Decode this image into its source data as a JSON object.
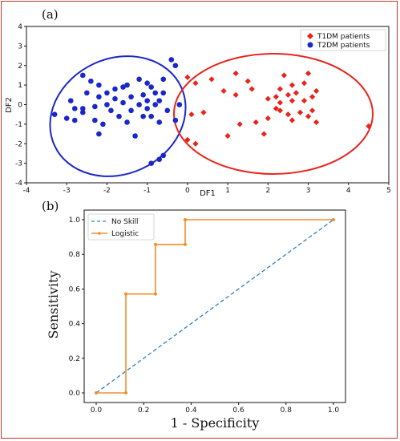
{
  "chart_data": [
    {
      "panel": "(a)",
      "type": "scatter",
      "title": "",
      "xlabel": "DF1",
      "ylabel": "DF2",
      "xlim": [
        -4,
        5
      ],
      "ylim": [
        -4,
        4
      ],
      "xticks": [
        "-4",
        "-3",
        "-2",
        "-1",
        "0",
        "1",
        "2",
        "3",
        "4",
        "5"
      ],
      "yticks": [
        "-4",
        "-3",
        "-2",
        "-1",
        "0",
        "1",
        "2",
        "3",
        "4"
      ],
      "grid": false,
      "legend_position": "top-right",
      "series": [
        {
          "name": "T1DM patients",
          "marker": "diamond",
          "color": "#e8241c",
          "points": [
            [
              0.0,
              1.4
            ],
            [
              0.2,
              1.1
            ],
            [
              0.1,
              -0.5
            ],
            [
              0.4,
              -0.4
            ],
            [
              0.6,
              1.3
            ],
            [
              0.2,
              -2.0
            ],
            [
              0.0,
              -1.8
            ],
            [
              0.9,
              0.7
            ],
            [
              1.0,
              -1.6
            ],
            [
              1.2,
              1.6
            ],
            [
              1.2,
              0.5
            ],
            [
              1.3,
              -1.0
            ],
            [
              1.6,
              0.8
            ],
            [
              1.7,
              -0.9
            ],
            [
              1.9,
              -1.5
            ],
            [
              2.0,
              0.3
            ],
            [
              2.0,
              -0.7
            ],
            [
              2.2,
              0.4
            ],
            [
              2.3,
              0.1
            ],
            [
              2.3,
              -0.3
            ],
            [
              2.3,
              0.8
            ],
            [
              2.4,
              1.5
            ],
            [
              2.5,
              0.5
            ],
            [
              2.5,
              -0.5
            ],
            [
              2.6,
              1.0
            ],
            [
              2.6,
              0.2
            ],
            [
              2.6,
              -0.8
            ],
            [
              2.7,
              0.6
            ],
            [
              2.8,
              -0.4
            ],
            [
              2.9,
              0.2
            ],
            [
              2.9,
              1.1
            ],
            [
              3.0,
              -0.6
            ],
            [
              3.0,
              1.6
            ],
            [
              3.1,
              0.4
            ],
            [
              3.1,
              -0.3
            ],
            [
              3.2,
              0.7
            ],
            [
              3.2,
              -0.9
            ],
            [
              2.2,
              -0.2
            ],
            [
              1.5,
              1.2
            ],
            [
              4.5,
              -1.1
            ]
          ]
        },
        {
          "name": "T2DM patients",
          "marker": "circle",
          "color": "#1a27c9",
          "points": [
            [
              -3.3,
              -0.5
            ],
            [
              -3.0,
              -0.7
            ],
            [
              -2.9,
              0.2
            ],
            [
              -2.8,
              -0.2
            ],
            [
              -2.8,
              -0.8
            ],
            [
              -2.6,
              1.5
            ],
            [
              -2.6,
              -0.4
            ],
            [
              -2.5,
              0.6
            ],
            [
              -2.4,
              1.2
            ],
            [
              -2.3,
              -0.1
            ],
            [
              -2.3,
              -0.8
            ],
            [
              -2.2,
              0.4
            ],
            [
              -2.2,
              1.0
            ],
            [
              -2.2,
              -1.5
            ],
            [
              -2.1,
              -1.0
            ],
            [
              -2.0,
              0.0
            ],
            [
              -2.0,
              0.6
            ],
            [
              -1.9,
              -0.3
            ],
            [
              -1.8,
              0.3
            ],
            [
              -1.8,
              0.8
            ],
            [
              -1.7,
              -0.6
            ],
            [
              -1.6,
              0.1
            ],
            [
              -1.5,
              1.0
            ],
            [
              -1.5,
              -0.9
            ],
            [
              -1.4,
              0.4
            ],
            [
              -1.4,
              -0.3
            ],
            [
              -1.3,
              -1.6
            ],
            [
              -1.2,
              1.3
            ],
            [
              -1.2,
              0.0
            ],
            [
              -1.1,
              0.5
            ],
            [
              -1.1,
              -0.6
            ],
            [
              -1.0,
              0.2
            ],
            [
              -1.0,
              -0.2
            ],
            [
              -1.0,
              1.1
            ],
            [
              -0.9,
              0.9
            ],
            [
              -0.9,
              -0.6
            ],
            [
              -0.8,
              0.6
            ],
            [
              -0.8,
              0.0
            ],
            [
              -0.7,
              0.2
            ],
            [
              -0.7,
              -0.9
            ],
            [
              -0.6,
              0.6
            ],
            [
              -0.6,
              1.3
            ],
            [
              -0.5,
              -0.3
            ],
            [
              -0.4,
              2.3
            ],
            [
              -0.3,
              -0.8
            ],
            [
              -0.3,
              2.0
            ],
            [
              -0.2,
              0.0
            ],
            [
              -0.6,
              -2.6
            ],
            [
              -0.7,
              -2.8
            ],
            [
              -0.9,
              -3.0
            ],
            [
              -1.6,
              0.9
            ],
            [
              -2.6,
              -0.2
            ]
          ]
        }
      ],
      "annotations": [
        "blue ellipse around T2DM cluster",
        "red ellipse around T1DM cluster"
      ]
    },
    {
      "panel": "(b)",
      "type": "line",
      "title": "",
      "xlabel": "1 - Specificity",
      "ylabel": "Sensitivity",
      "xlim": [
        0,
        1
      ],
      "ylim": [
        0,
        1
      ],
      "xticks": [
        "0.0",
        "0.2",
        "0.4",
        "0.6",
        "0.8",
        "1.0"
      ],
      "yticks": [
        "0.0",
        "0.2",
        "0.4",
        "0.6",
        "0.8",
        "1.0"
      ],
      "grid": false,
      "legend_position": "top-left",
      "series": [
        {
          "name": "No Skill",
          "style": "dashed",
          "color": "#2f7fc1",
          "x": [
            0.0,
            1.0
          ],
          "y": [
            0.0,
            1.0
          ]
        },
        {
          "name": "Logistic",
          "style": "solid-dot",
          "color": "#f28e2b",
          "x": [
            0.0,
            0.125,
            0.125,
            0.25,
            0.25,
            0.375,
            0.375,
            1.0
          ],
          "y": [
            0.0,
            0.0,
            0.571,
            0.571,
            0.857,
            0.857,
            1.0,
            1.0
          ]
        }
      ]
    }
  ]
}
